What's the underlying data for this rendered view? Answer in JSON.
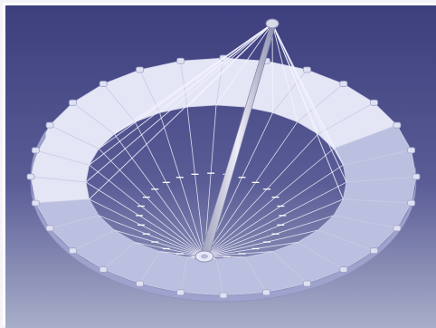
{
  "viewport": {
    "background_top": "#3d3f7e",
    "background_bottom": "#a8aec9",
    "surface_light": "#e4e6f5",
    "surface_shade": "#bcc0e0",
    "cable_color": "#f4f4ff",
    "mast_color": "#d8dae8"
  },
  "model": {
    "panel_count": 28,
    "tie_rods_per_side": 14,
    "mast_icon": "mast-icon",
    "hub_icon": "hub-icon"
  }
}
